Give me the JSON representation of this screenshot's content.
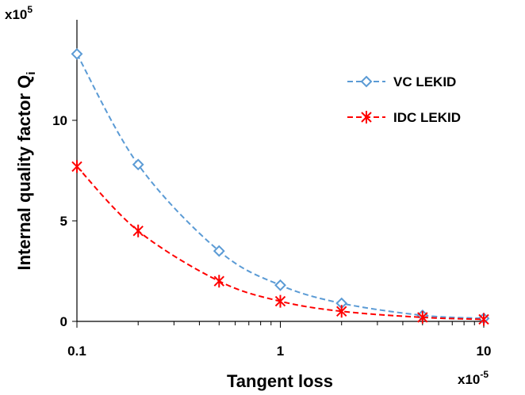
{
  "chart_data": {
    "type": "line",
    "x_label": "Tangent loss",
    "x_multiplier": {
      "base": "x10",
      "exponent": "-5"
    },
    "y_label": "Internal quality factor Q",
    "y_label_subscript": "i",
    "y_multiplier": {
      "base": "x10",
      "exponent": "5"
    },
    "x": [
      0.1,
      0.2,
      0.5,
      1,
      2,
      5,
      10
    ],
    "series": [
      {
        "name": "VC LEKID",
        "color": "#5b9bd5",
        "marker": "diamond",
        "values": [
          13.3,
          7.8,
          3.5,
          1.8,
          0.9,
          0.3,
          0.15
        ]
      },
      {
        "name": "IDC LEKID",
        "color": "#ff0000",
        "marker": "asterisk",
        "values": [
          7.7,
          4.5,
          2.0,
          1.0,
          0.5,
          0.2,
          0.1
        ]
      }
    ],
    "xscale": "log",
    "xlim": [
      0.1,
      10
    ],
    "xticks": [
      0.1,
      1,
      10
    ],
    "ylim": [
      0,
      15
    ],
    "yticks": [
      0,
      5,
      10
    ],
    "legend": "upper right",
    "grid": false
  }
}
